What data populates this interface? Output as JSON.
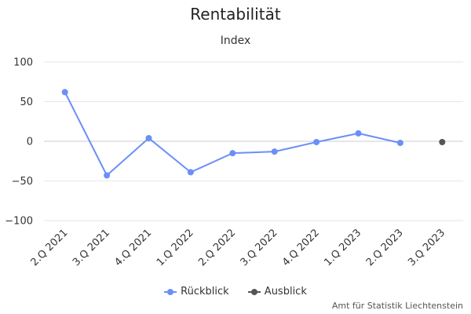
{
  "chart_data": {
    "type": "line",
    "title": "Rentabilität",
    "subtitle": "Index",
    "categories": [
      "2.Q 2021",
      "3.Q 2021",
      "4.Q 2021",
      "1.Q 2022",
      "2.Q 2022",
      "3.Q 2022",
      "4.Q 2022",
      "1.Q 2023",
      "2.Q 2023",
      "3.Q 2023"
    ],
    "ylim": [
      -100,
      100
    ],
    "yticks": [
      100,
      50,
      0,
      -50,
      -100
    ],
    "y_tick_labels": [
      "100",
      "50",
      "0",
      "−50",
      "−100"
    ],
    "grid": true,
    "legend_position": "bottom-center",
    "series": [
      {
        "name": "Rückblick",
        "color": "#6b8ff8",
        "values": [
          62,
          -43,
          4,
          -39,
          -15,
          -13,
          -1,
          10,
          -2,
          null
        ]
      },
      {
        "name": "Ausblick",
        "color": "#555555",
        "values": [
          null,
          null,
          null,
          null,
          null,
          null,
          null,
          null,
          null,
          -1
        ]
      }
    ]
  },
  "credits": "Amt für Statistik Liechtenstein"
}
